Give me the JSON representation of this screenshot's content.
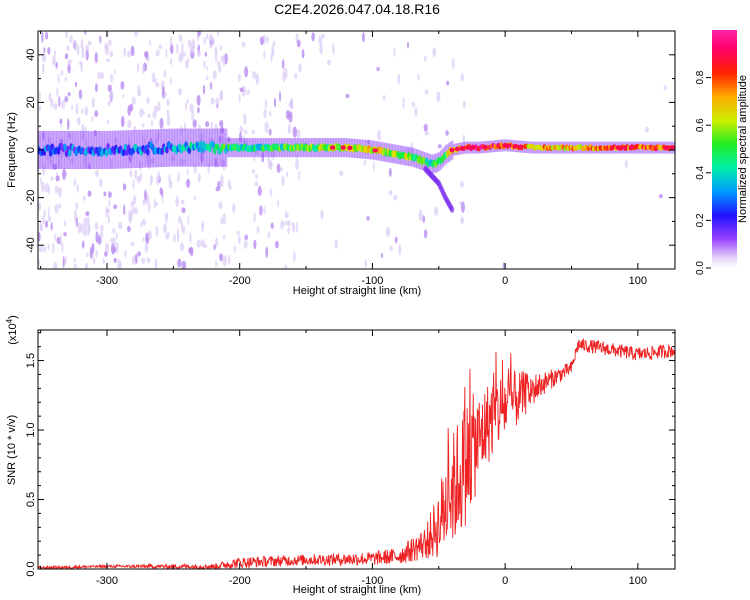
{
  "title": "C2E4.2026.047.04.18.R16",
  "chart_data": [
    {
      "type": "heatmap",
      "name": "spectrogram",
      "xlabel": "Height of straight line (km)",
      "ylabel": "Frequency (Hz)",
      "xlim": [
        -352,
        128
      ],
      "ylim": [
        -50,
        50
      ],
      "xticks": [
        -300,
        -200,
        -100,
        0,
        100
      ],
      "xtick_labels": [
        "-300",
        "-200",
        "-100",
        "0",
        "100"
      ],
      "yticks": [
        -40,
        -20,
        0,
        20,
        40
      ],
      "ytick_labels": [
        "-40",
        "-20",
        "0",
        "20",
        "40"
      ],
      "colorbar": {
        "label": "Normalized spectral amplitude",
        "range": [
          0,
          1
        ],
        "ticks": [
          0.0,
          0.2,
          0.4,
          0.6,
          0.8
        ],
        "tick_labels": [
          "0.0",
          "0.2",
          "0.4",
          "0.6",
          "0.8"
        ]
      },
      "ridge": {
        "x": [
          -352,
          -300,
          -250,
          -210,
          -180,
          -150,
          -120,
          -100,
          -90,
          -80,
          -70,
          -60,
          -55,
          -50,
          -45,
          -40,
          -30,
          -20,
          0,
          20,
          60,
          100,
          128
        ],
        "frequency": [
          0,
          0,
          1,
          1,
          1,
          1,
          1,
          0,
          -1,
          -2,
          -3,
          -5,
          -6,
          -5,
          -2,
          0,
          1,
          1,
          2,
          1,
          1,
          1,
          1
        ],
        "amplitude": [
          0.25,
          0.25,
          0.3,
          0.45,
          0.45,
          0.5,
          0.6,
          0.65,
          0.6,
          0.55,
          0.55,
          0.5,
          0.45,
          0.5,
          0.55,
          0.65,
          0.85,
          0.9,
          0.8,
          0.7,
          0.7,
          0.8,
          0.75
        ]
      },
      "branch": {
        "x": [
          -60,
          -50,
          -45,
          -40
        ],
        "frequency": [
          -8,
          -14,
          -20,
          -25
        ]
      }
    },
    {
      "type": "line",
      "name": "snr",
      "xlabel": "Height of straight line (km)",
      "ylabel": "SNR (10 * v/v)",
      "scale_label": "(x10",
      "scale_exponent": "4",
      "scale_close": ")",
      "xlim": [
        -352,
        128
      ],
      "ylim": [
        0,
        1.72
      ],
      "xticks": [
        -300,
        -200,
        -100,
        0,
        100
      ],
      "xtick_labels": [
        "-300",
        "-200",
        "-100",
        "0",
        "100"
      ],
      "yticks": [
        0.0,
        0.5,
        1.0,
        1.5
      ],
      "ytick_labels": [
        "0.0",
        "0.5",
        "1.0",
        "1.5"
      ],
      "color": "#ee2222",
      "envelope": {
        "x": [
          -352,
          -300,
          -220,
          -200,
          -150,
          -100,
          -80,
          -60,
          -50,
          -45,
          -40,
          -35,
          -30,
          -25,
          -20,
          -15,
          -10,
          0,
          10,
          20,
          30,
          40,
          50,
          55,
          70,
          100,
          128
        ],
        "y": [
          0.01,
          0.02,
          0.02,
          0.05,
          0.07,
          0.08,
          0.1,
          0.2,
          0.35,
          0.5,
          0.6,
          0.7,
          0.8,
          0.9,
          0.95,
          1.05,
          1.12,
          1.2,
          1.25,
          1.3,
          1.35,
          1.4,
          1.45,
          1.62,
          1.6,
          1.55,
          1.58
        ]
      },
      "spread": {
        "x": [
          -352,
          -300,
          -220,
          -200,
          -150,
          -100,
          -80,
          -60,
          -50,
          -45,
          -40,
          -35,
          -30,
          -25,
          -20,
          -15,
          -10,
          0,
          10,
          20,
          30,
          40,
          50,
          55,
          70,
          100,
          128
        ],
        "y": [
          0.01,
          0.01,
          0.02,
          0.04,
          0.04,
          0.05,
          0.06,
          0.12,
          0.25,
          0.35,
          0.4,
          0.45,
          0.45,
          0.4,
          0.35,
          0.3,
          0.3,
          0.25,
          0.2,
          0.12,
          0.08,
          0.06,
          0.05,
          0.05,
          0.05,
          0.05,
          0.05
        ]
      }
    }
  ]
}
